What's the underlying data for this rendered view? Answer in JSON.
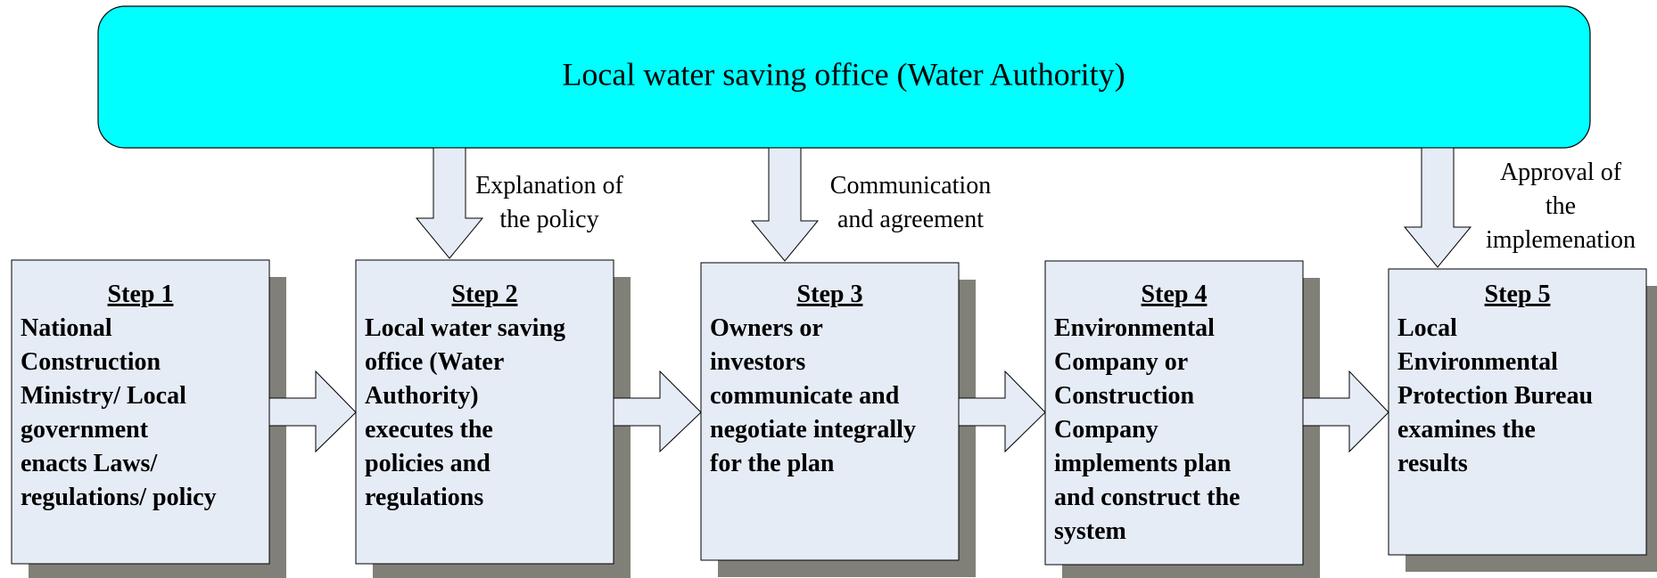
{
  "header": {
    "title": "Local water saving office (Water Authority)"
  },
  "steps": [
    {
      "heading": "Step 1",
      "lines": [
        "National",
        "Construction",
        "Ministry/ Local",
        "government",
        "enacts Laws/",
        "regulations/ policy"
      ]
    },
    {
      "heading": "Step 2",
      "lines": [
        "Local water saving",
        "office (Water",
        "Authority)",
        "executes the",
        "policies and",
        "regulations"
      ]
    },
    {
      "heading": "Step 3",
      "lines": [
        "Owners or",
        "investors",
        "communicate and",
        "negotiate integrally",
        "for the plan"
      ]
    },
    {
      "heading": "Step 4",
      "lines": [
        "Environmental",
        "Company or",
        "Construction",
        "Company",
        "implements plan",
        "and construct the",
        "system"
      ]
    },
    {
      "heading": "Step 5",
      "lines": [
        "Local",
        "Environmental",
        "Protection Bureau",
        "examines the",
        "results"
      ]
    }
  ],
  "arrow_labels": [
    {
      "lines": [
        "Explanation of",
        "the policy"
      ]
    },
    {
      "lines": [
        "Communication",
        "and agreement"
      ]
    },
    {
      "lines": [
        "Approval of",
        "the",
        "implemenation"
      ]
    }
  ]
}
